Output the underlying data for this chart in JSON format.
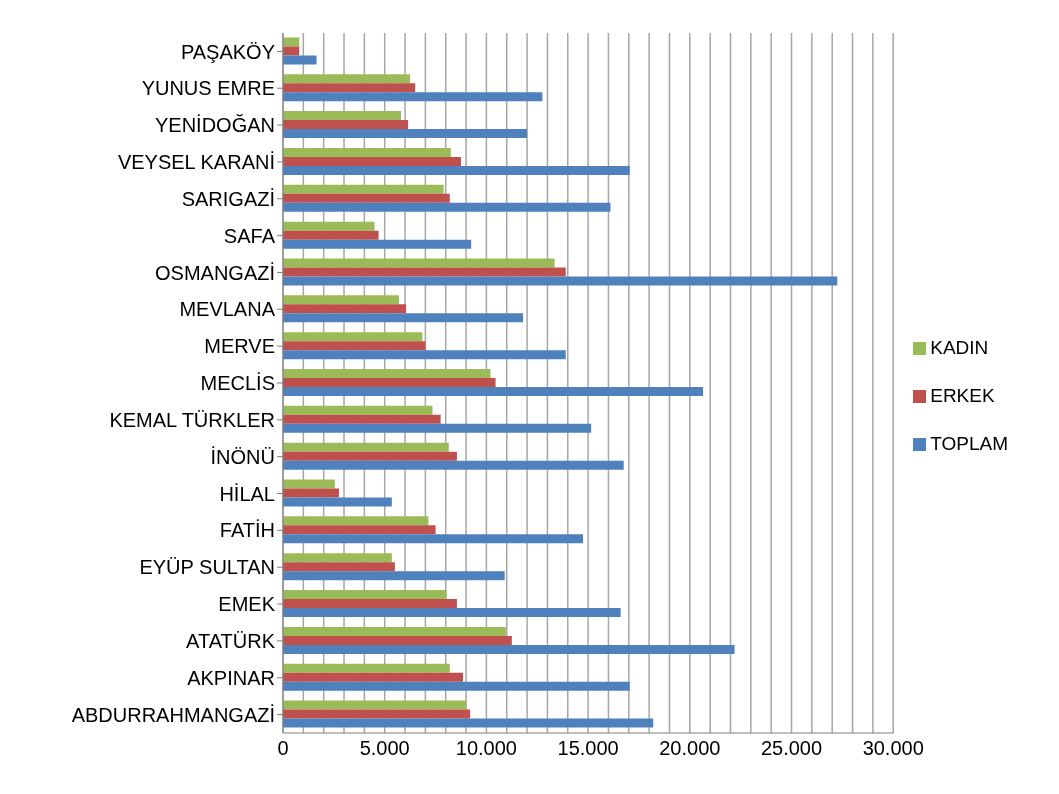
{
  "chart_data": {
    "type": "bar",
    "orientation": "horizontal",
    "categories": [
      "PAŞAKÖY",
      "YUNUS EMRE",
      "YENİDOĞAN",
      "VEYSEL KARANİ",
      "SARIGAZİ",
      "SAFA",
      "OSMANGAZİ",
      "MEVLANA",
      "MERVE",
      "MECLİS",
      "KEMAL TÜRKLER",
      "İNÖNÜ",
      "HİLAL",
      "FATİH",
      "EYÜP SULTAN",
      "EMEK",
      "ATATÜRK",
      "AKPINAR",
      "ABDURRAHMANGAZİ"
    ],
    "series": [
      {
        "name": "KADIN",
        "color": "#9bbb59",
        "values": [
          800,
          6250,
          5800,
          8250,
          7900,
          4500,
          13350,
          5700,
          6850,
          10200,
          7350,
          8150,
          2550,
          7150,
          5350,
          8050,
          10950,
          8200,
          9000
        ]
      },
      {
        "name": "ERKEK",
        "color": "#c0504d",
        "values": [
          800,
          6500,
          6150,
          8750,
          8200,
          4700,
          13900,
          6050,
          7000,
          10450,
          7750,
          8550,
          2750,
          7500,
          5500,
          8550,
          11250,
          8850,
          9200
        ]
      },
      {
        "name": "TOPLAM",
        "color": "#4f81bd",
        "values": [
          1650,
          12750,
          12000,
          17050,
          16100,
          9250,
          27250,
          11800,
          13900,
          20650,
          15150,
          16750,
          5350,
          14750,
          10900,
          16600,
          22200,
          17050,
          18200
        ]
      }
    ],
    "xlim": [
      0,
      30000
    ],
    "xticks": [
      0,
      {
        "value": 1000,
        "label": null
      },
      {
        "value": 2000,
        "label": null
      },
      {
        "value": 3000,
        "label": null
      },
      {
        "value": 4000,
        "label": null
      },
      {
        "value": 5000,
        "label": "5.000"
      },
      {
        "value": 6000,
        "label": null
      },
      {
        "value": 7000,
        "label": null
      },
      {
        "value": 8000,
        "label": null
      },
      {
        "value": 9000,
        "label": null
      },
      {
        "value": 10000,
        "label": "10.000"
      },
      {
        "value": 11000,
        "label": null
      },
      {
        "value": 12000,
        "label": null
      },
      {
        "value": 13000,
        "label": null
      },
      {
        "value": 14000,
        "label": null
      },
      {
        "value": 15000,
        "label": "15.000"
      },
      {
        "value": 16000,
        "label": null
      },
      {
        "value": 17000,
        "label": null
      },
      {
        "value": 18000,
        "label": null
      },
      {
        "value": 19000,
        "label": null
      },
      {
        "value": 20000,
        "label": "20.000"
      },
      {
        "value": 21000,
        "label": null
      },
      {
        "value": 22000,
        "label": null
      },
      {
        "value": 23000,
        "label": null
      },
      {
        "value": 24000,
        "label": null
      },
      {
        "value": 25000,
        "label": "25.000"
      },
      {
        "value": 26000,
        "label": null
      },
      {
        "value": 27000,
        "label": null
      },
      {
        "value": 28000,
        "label": null
      },
      {
        "value": 29000,
        "label": null
      },
      {
        "value": 30000,
        "label": "30.000"
      }
    ],
    "grid": "x",
    "legend": "right"
  }
}
